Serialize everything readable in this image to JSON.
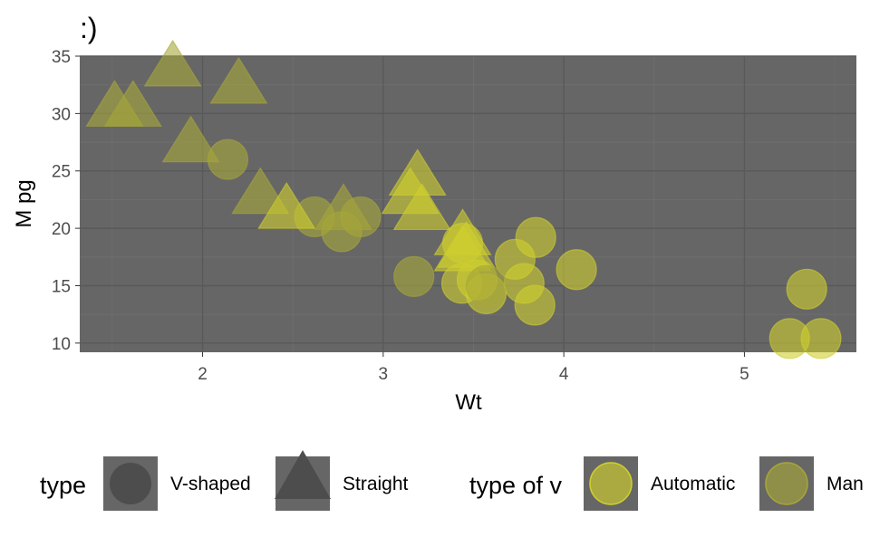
{
  "chart_data": {
    "type": "scatter",
    "title": ":)",
    "xlabel": "Wt",
    "ylabel": "M pg",
    "xlim": [
      1.32,
      5.62
    ],
    "ylim": [
      9.2,
      35.0
    ],
    "x_ticks": [
      2,
      3,
      4,
      5
    ],
    "y_ticks": [
      10,
      15,
      20,
      25,
      30,
      35
    ],
    "grid": true,
    "legend_position": "bottom",
    "colors": {
      "panel": "#666666",
      "grid_major": "#595959",
      "grid_minor": "#707070",
      "automatic": "#cfcf2e",
      "manual": "#a6a63a",
      "legend_key_shape": "#4d4d4d"
    },
    "legends": [
      {
        "title": "type",
        "entries": [
          {
            "label": "V-shaped",
            "shape": "circle"
          },
          {
            "label": "Straight",
            "shape": "triangle"
          }
        ]
      },
      {
        "title": "type of v",
        "entries": [
          {
            "label": "Automatic",
            "color": "#cfcf2e"
          },
          {
            "label": "Man",
            "color": "#a6a63a"
          }
        ]
      }
    ],
    "points": [
      {
        "x": 2.62,
        "y": 21.0,
        "shape": "circle",
        "group": "Man"
      },
      {
        "x": 2.875,
        "y": 21.0,
        "shape": "circle",
        "group": "Man"
      },
      {
        "x": 2.32,
        "y": 22.8,
        "shape": "triangle",
        "group": "Man"
      },
      {
        "x": 3.215,
        "y": 21.4,
        "shape": "triangle",
        "group": "Automatic"
      },
      {
        "x": 3.44,
        "y": 18.7,
        "shape": "circle",
        "group": "Automatic"
      },
      {
        "x": 3.46,
        "y": 18.1,
        "shape": "triangle",
        "group": "Automatic"
      },
      {
        "x": 3.57,
        "y": 14.3,
        "shape": "circle",
        "group": "Automatic"
      },
      {
        "x": 3.19,
        "y": 24.4,
        "shape": "triangle",
        "group": "Automatic"
      },
      {
        "x": 3.15,
        "y": 22.8,
        "shape": "triangle",
        "group": "Automatic"
      },
      {
        "x": 3.44,
        "y": 19.2,
        "shape": "triangle",
        "group": "Automatic"
      },
      {
        "x": 3.44,
        "y": 17.8,
        "shape": "triangle",
        "group": "Automatic"
      },
      {
        "x": 4.07,
        "y": 16.4,
        "shape": "circle",
        "group": "Automatic"
      },
      {
        "x": 3.73,
        "y": 17.3,
        "shape": "circle",
        "group": "Automatic"
      },
      {
        "x": 3.78,
        "y": 15.2,
        "shape": "circle",
        "group": "Automatic"
      },
      {
        "x": 5.25,
        "y": 10.4,
        "shape": "circle",
        "group": "Automatic"
      },
      {
        "x": 5.424,
        "y": 10.4,
        "shape": "circle",
        "group": "Automatic"
      },
      {
        "x": 5.345,
        "y": 14.7,
        "shape": "circle",
        "group": "Automatic"
      },
      {
        "x": 2.2,
        "y": 32.4,
        "shape": "triangle",
        "group": "Man"
      },
      {
        "x": 1.615,
        "y": 30.4,
        "shape": "triangle",
        "group": "Man"
      },
      {
        "x": 1.835,
        "y": 33.9,
        "shape": "triangle",
        "group": "Man"
      },
      {
        "x": 2.465,
        "y": 21.5,
        "shape": "triangle",
        "group": "Automatic"
      },
      {
        "x": 3.52,
        "y": 15.5,
        "shape": "circle",
        "group": "Automatic"
      },
      {
        "x": 3.435,
        "y": 15.2,
        "shape": "circle",
        "group": "Automatic"
      },
      {
        "x": 3.84,
        "y": 13.3,
        "shape": "circle",
        "group": "Automatic"
      },
      {
        "x": 3.845,
        "y": 19.2,
        "shape": "circle",
        "group": "Automatic"
      },
      {
        "x": 1.935,
        "y": 27.3,
        "shape": "triangle",
        "group": "Man"
      },
      {
        "x": 2.14,
        "y": 26.0,
        "shape": "circle",
        "group": "Man"
      },
      {
        "x": 1.513,
        "y": 30.4,
        "shape": "triangle",
        "group": "Man"
      },
      {
        "x": 3.17,
        "y": 15.8,
        "shape": "circle",
        "group": "Man"
      },
      {
        "x": 2.77,
        "y": 19.7,
        "shape": "circle",
        "group": "Man"
      },
      {
        "x": 3.57,
        "y": 15.0,
        "shape": "circle",
        "group": "Man"
      },
      {
        "x": 2.78,
        "y": 21.4,
        "shape": "triangle",
        "group": "Man"
      }
    ]
  }
}
